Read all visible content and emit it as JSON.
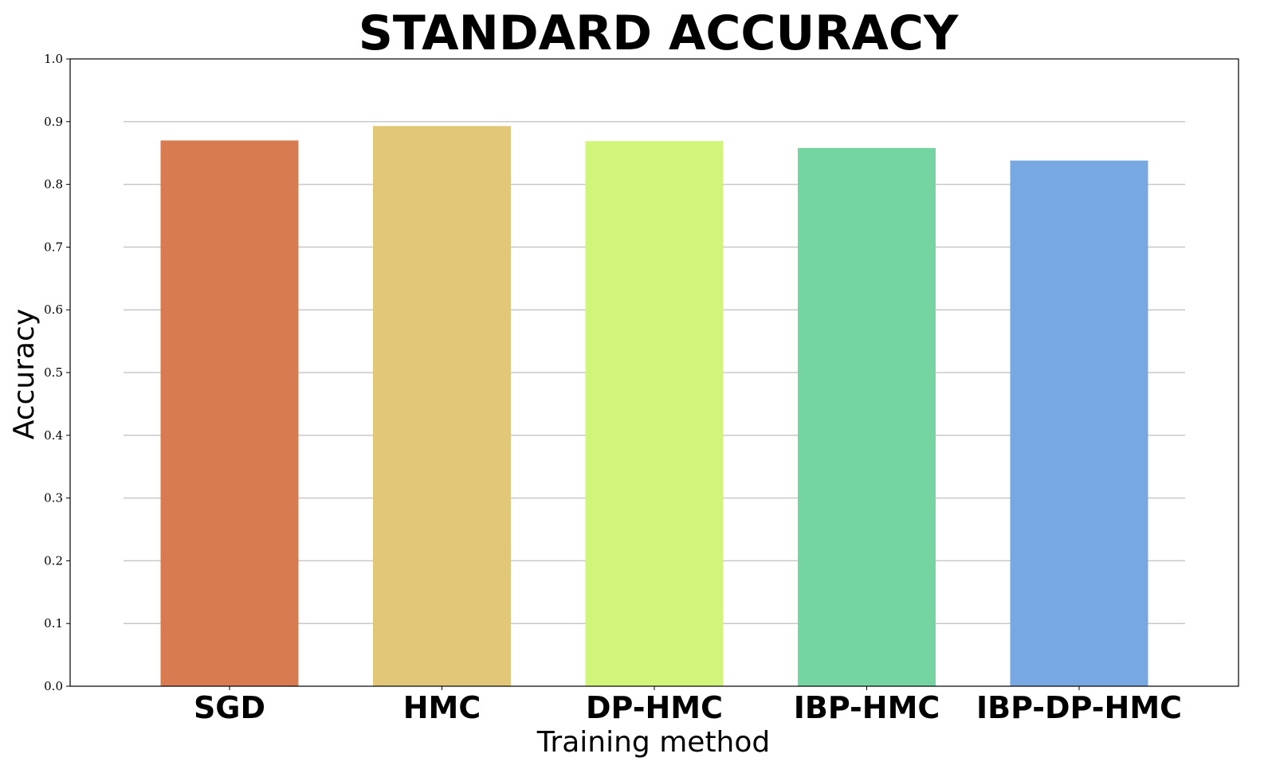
{
  "chart_data": {
    "type": "bar",
    "title": "STANDARD ACCURACY",
    "xlabel": "Training method",
    "ylabel": "Accuracy",
    "categories": [
      "SGD",
      "HMC",
      "DP-HMC",
      "IBP-HMC",
      "IBP-DP-HMC"
    ],
    "values": [
      0.87,
      0.893,
      0.869,
      0.858,
      0.838
    ],
    "colors": [
      "#d87b51",
      "#e3c778",
      "#d0f57a",
      "#74d5a3",
      "#77a8e2"
    ],
    "ylim": [
      0,
      1.0
    ],
    "yticks": [
      "0.0",
      "0.1",
      "0.2",
      "0.3",
      "0.4",
      "0.5",
      "0.6",
      "0.7",
      "0.8",
      "0.9",
      "1.0"
    ],
    "grid": "horizontal",
    "legend": "none"
  }
}
